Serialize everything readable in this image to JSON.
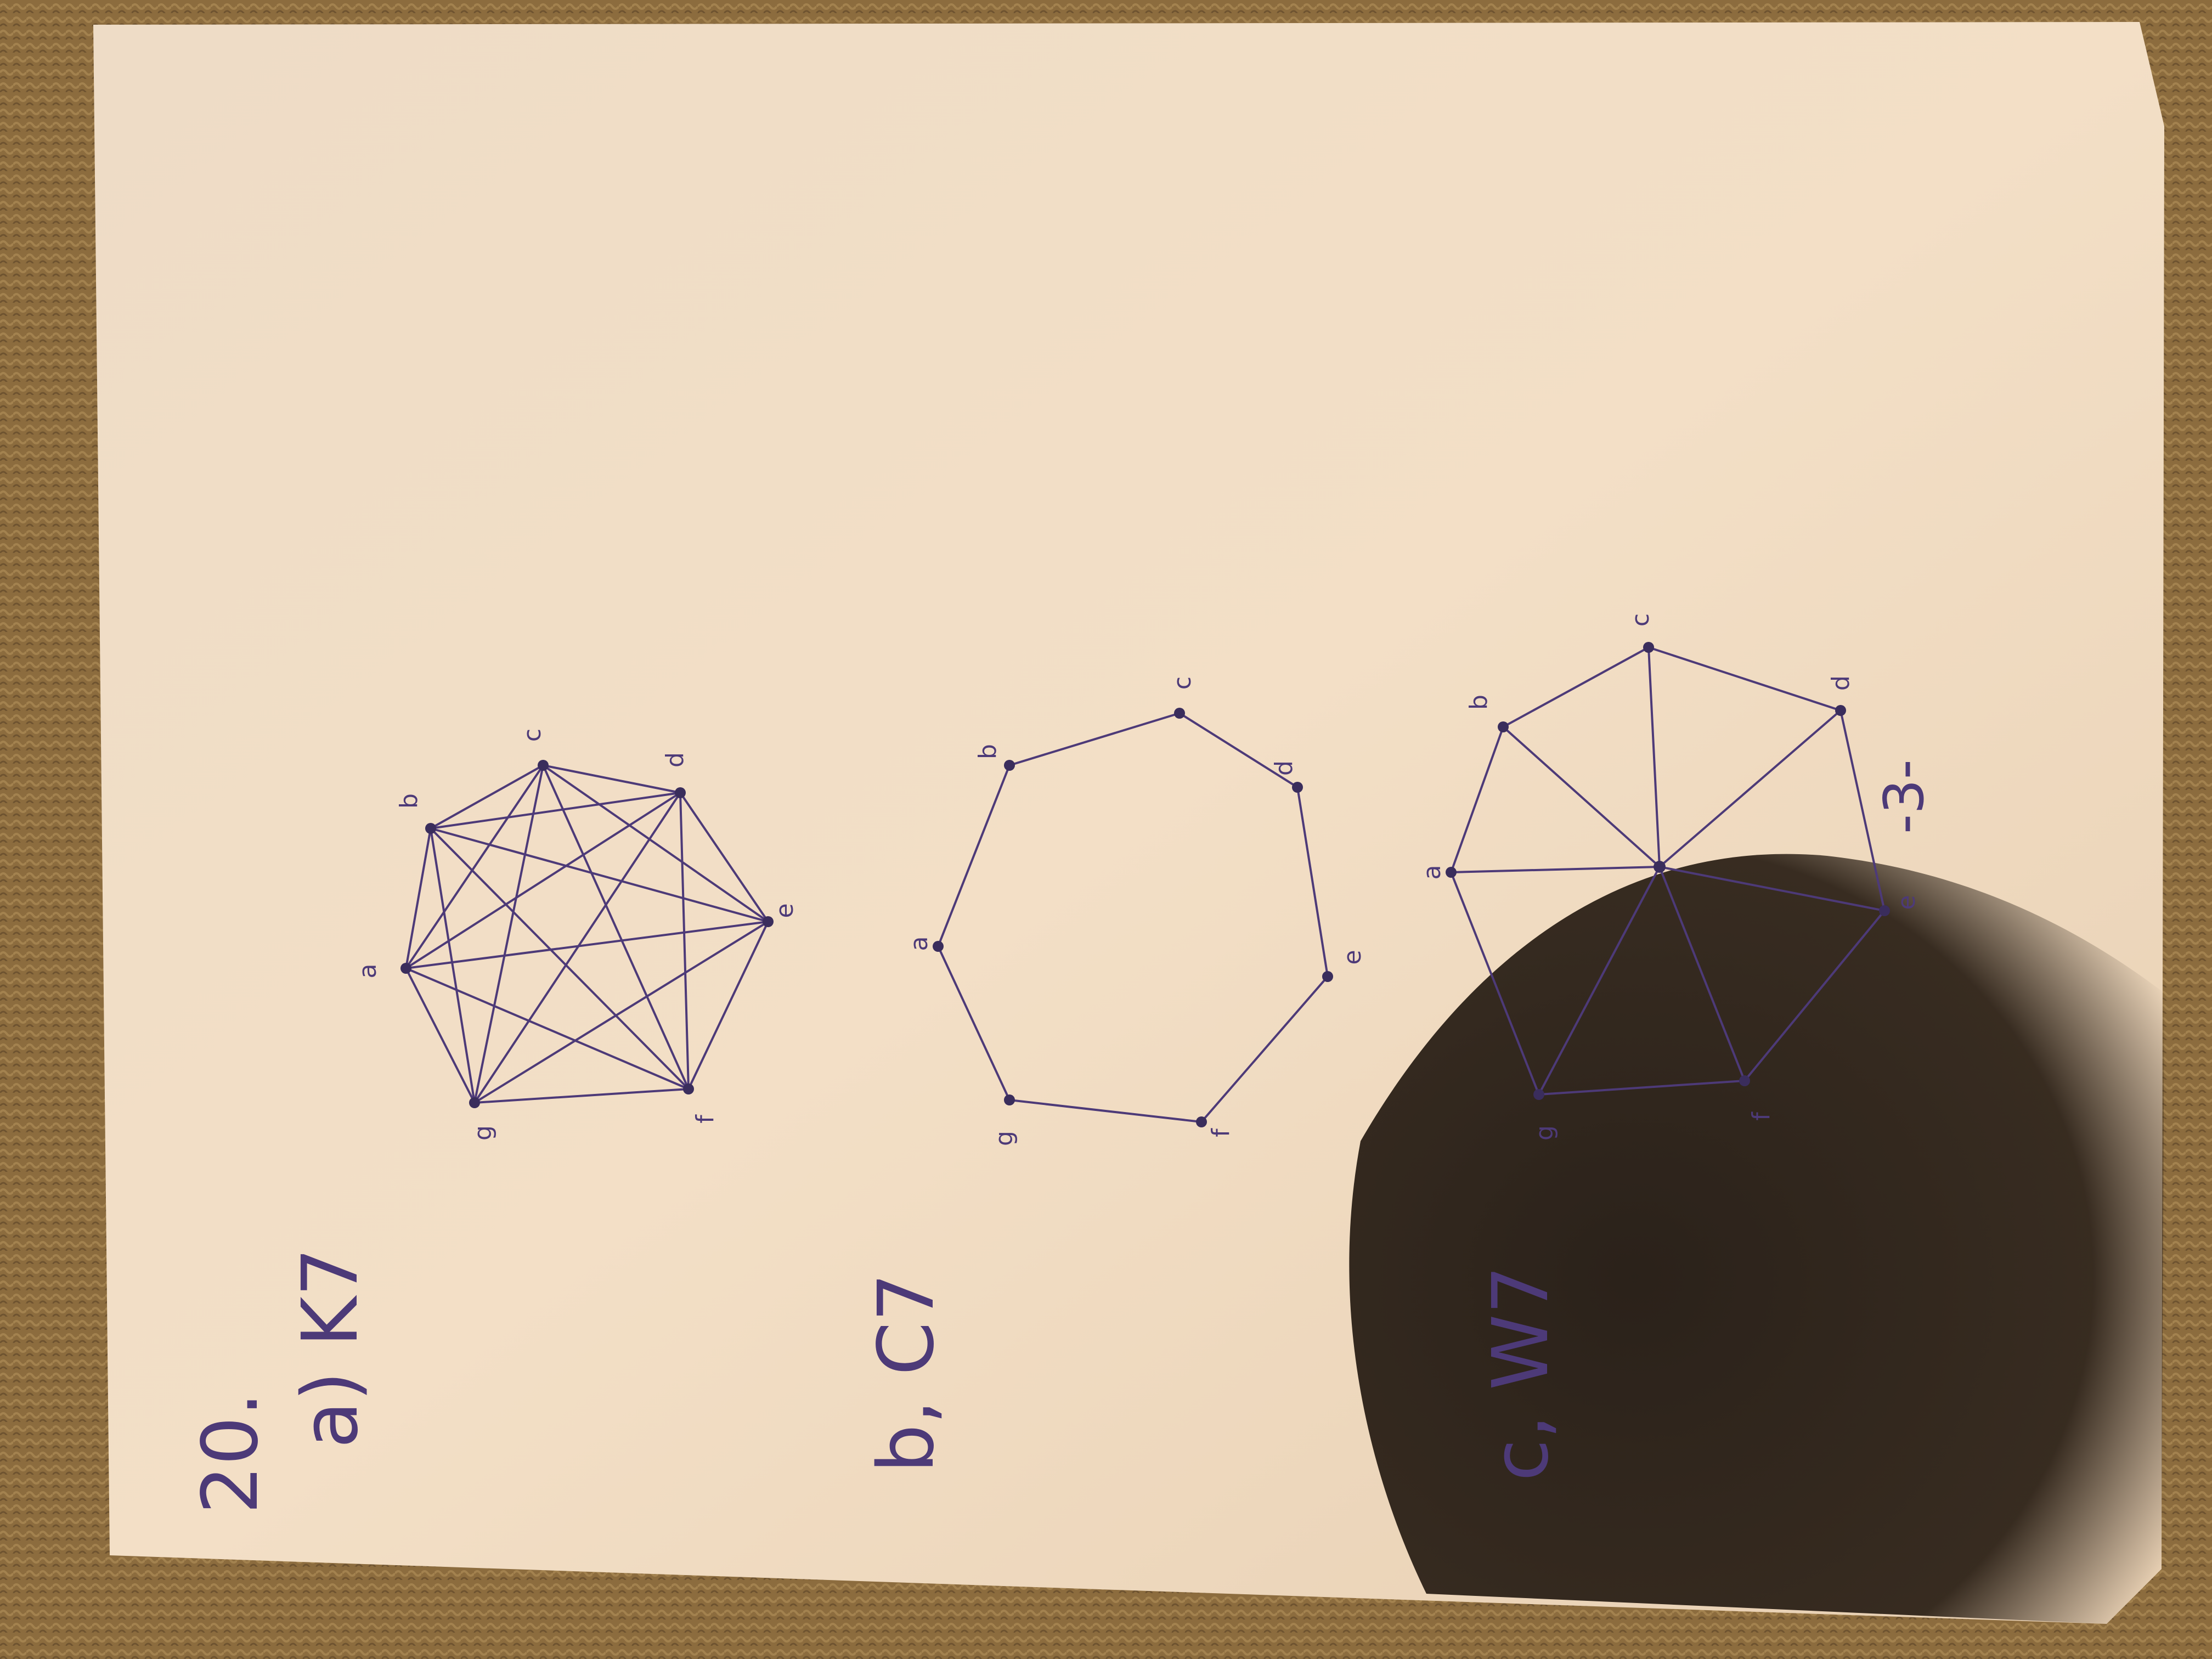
{
  "page": {
    "problem_number": "20.",
    "page_number": "-3-"
  },
  "graphs": [
    {
      "id": "k7",
      "label": "a) K7",
      "vertices": [
        "a",
        "b",
        "c",
        "d",
        "e",
        "f",
        "g"
      ],
      "edges": "complete"
    },
    {
      "id": "c7",
      "label": "b, C7",
      "vertices": [
        "a",
        "b",
        "c",
        "d",
        "e",
        "f",
        "g"
      ],
      "edges": "cycle"
    },
    {
      "id": "w7",
      "label": "c, W7",
      "vertices": [
        "a",
        "b",
        "c",
        "d",
        "e",
        "f",
        "g"
      ],
      "edges": "wheel"
    }
  ],
  "colors": {
    "ink": "#4d3a78",
    "paper": "#f1dcc3",
    "carpet": "#8a6a3c",
    "shadow": "#1e1610"
  }
}
